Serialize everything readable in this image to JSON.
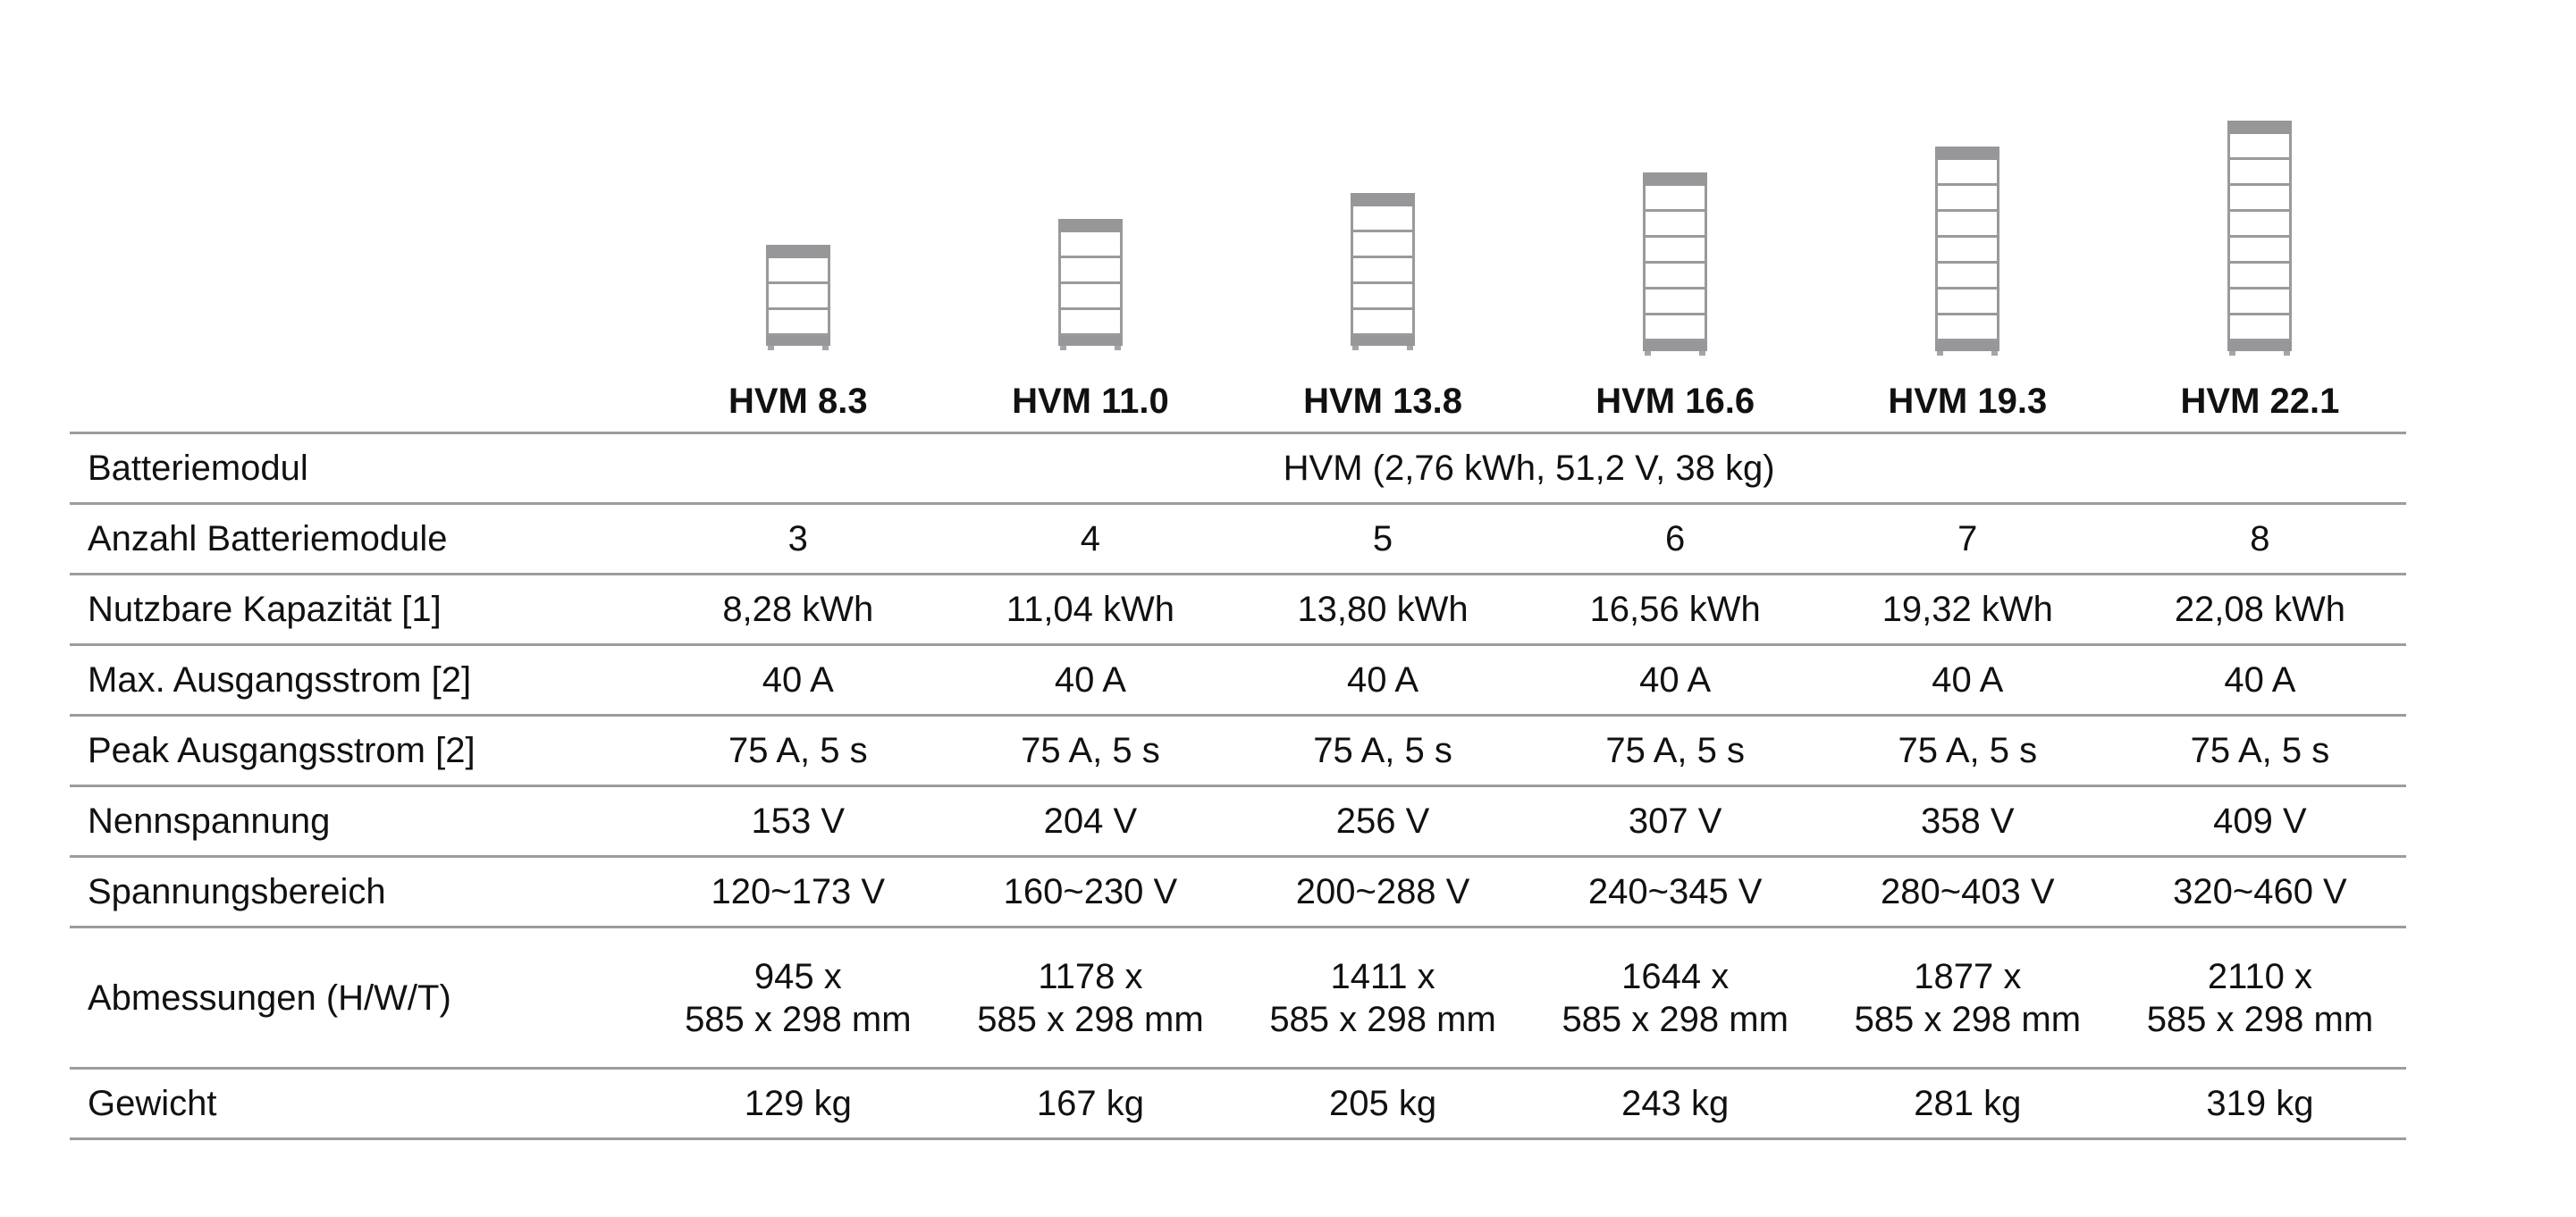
{
  "icon_style": {
    "frame_color": "#97979a",
    "line_color": "#9c9c9c"
  },
  "models": [
    {
      "name": "HVM 8.3",
      "modules": 3
    },
    {
      "name": "HVM 11.0",
      "modules": 4
    },
    {
      "name": "HVM 13.8",
      "modules": 5
    },
    {
      "name": "HVM 16.6",
      "modules": 6
    },
    {
      "name": "HVM 19.3",
      "modules": 7
    },
    {
      "name": "HVM 22.1",
      "modules": 8
    }
  ],
  "table": {
    "header_blank": "",
    "rows": [
      {
        "label": "Batteriemodul",
        "merged": "HVM (2,76 kWh, 51,2 V, 38 kg)"
      },
      {
        "label": "Anzahl Batteriemodule",
        "values": [
          "3",
          "4",
          "5",
          "6",
          "7",
          "8"
        ]
      },
      {
        "label": "Nutzbare Kapazität [1]",
        "values": [
          "8,28 kWh",
          "11,04 kWh",
          "13,80 kWh",
          "16,56 kWh",
          "19,32 kWh",
          "22,08 kWh"
        ]
      },
      {
        "label": "Max. Ausgangsstrom [2]",
        "values": [
          "40 A",
          "40 A",
          "40 A",
          "40 A",
          "40 A",
          "40 A"
        ]
      },
      {
        "label": "Peak Ausgangsstrom [2]",
        "values": [
          "75 A, 5 s",
          "75 A, 5 s",
          "75 A, 5 s",
          "75 A, 5 s",
          "75 A, 5 s",
          "75 A, 5 s"
        ]
      },
      {
        "label": "Nennspannung",
        "values": [
          "153 V",
          "204 V",
          "256 V",
          "307 V",
          "358 V",
          "409 V"
        ]
      },
      {
        "label": "Spannungsbereich",
        "values": [
          "120~173 V",
          "160~230 V",
          "200~288 V",
          "240~345 V",
          "280~403 V",
          "320~460 V"
        ]
      },
      {
        "label": "Abmessungen (H/W/T)",
        "values": [
          {
            "line1": "945 x",
            "line2": "585 x 298 mm"
          },
          {
            "line1": "1178 x",
            "line2": "585 x 298 mm"
          },
          {
            "line1": "1411 x",
            "line2": "585 x 298 mm"
          },
          {
            "line1": "1644 x",
            "line2": "585 x 298 mm"
          },
          {
            "line1": "1877 x",
            "line2": "585 x 298 mm"
          },
          {
            "line1": "2110 x",
            "line2": "585 x 298 mm"
          }
        ]
      },
      {
        "label": "Gewicht",
        "values": [
          "129 kg",
          "167 kg",
          "205 kg",
          "243 kg",
          "281 kg",
          "319 kg"
        ]
      }
    ]
  }
}
